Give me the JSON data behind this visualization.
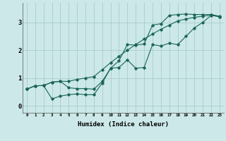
{
  "xlabel": "Humidex (Indice chaleur)",
  "background_color": "#cce8e8",
  "grid_color": "#aacccc",
  "line_color": "#1a6655",
  "xlim": [
    -0.5,
    23.5
  ],
  "ylim": [
    -0.25,
    3.7
  ],
  "yticks": [
    0,
    1,
    2,
    3
  ],
  "xticks": [
    0,
    1,
    2,
    3,
    4,
    5,
    6,
    7,
    8,
    9,
    10,
    11,
    12,
    13,
    14,
    15,
    16,
    17,
    18,
    19,
    20,
    21,
    22,
    23
  ],
  "line1_x": [
    0,
    1,
    2,
    3,
    4,
    5,
    6,
    7,
    8,
    9,
    10,
    11,
    12,
    13,
    14,
    15,
    16,
    17,
    18,
    19,
    20,
    21,
    22,
    23
  ],
  "line1_y": [
    0.6,
    0.72,
    0.73,
    0.85,
    0.88,
    0.65,
    0.62,
    0.62,
    0.6,
    0.88,
    1.35,
    1.38,
    1.65,
    1.35,
    1.38,
    2.2,
    2.15,
    2.25,
    2.2,
    2.5,
    2.8,
    3.0,
    3.25,
    3.2
  ],
  "line2_x": [
    0,
    1,
    2,
    3,
    4,
    5,
    6,
    7,
    8,
    9,
    10,
    11,
    12,
    13,
    14,
    15,
    16,
    17,
    18,
    19,
    20,
    21,
    22,
    23
  ],
  "line2_y": [
    0.6,
    0.72,
    0.73,
    0.25,
    0.35,
    0.4,
    0.43,
    0.4,
    0.4,
    0.82,
    1.35,
    1.62,
    2.2,
    2.18,
    2.22,
    2.9,
    2.95,
    3.25,
    3.28,
    3.3,
    3.28,
    3.28,
    3.28,
    3.22
  ],
  "line3_x": [
    0,
    1,
    2,
    3,
    4,
    5,
    6,
    7,
    8,
    9,
    10,
    11,
    12,
    13,
    14,
    15,
    16,
    17,
    18,
    19,
    20,
    21,
    22,
    23
  ],
  "line3_y": [
    0.6,
    0.72,
    0.73,
    0.85,
    0.88,
    0.88,
    0.95,
    1.0,
    1.05,
    1.3,
    1.55,
    1.78,
    2.0,
    2.2,
    2.4,
    2.58,
    2.75,
    2.9,
    3.05,
    3.12,
    3.18,
    3.22,
    3.26,
    3.2
  ]
}
